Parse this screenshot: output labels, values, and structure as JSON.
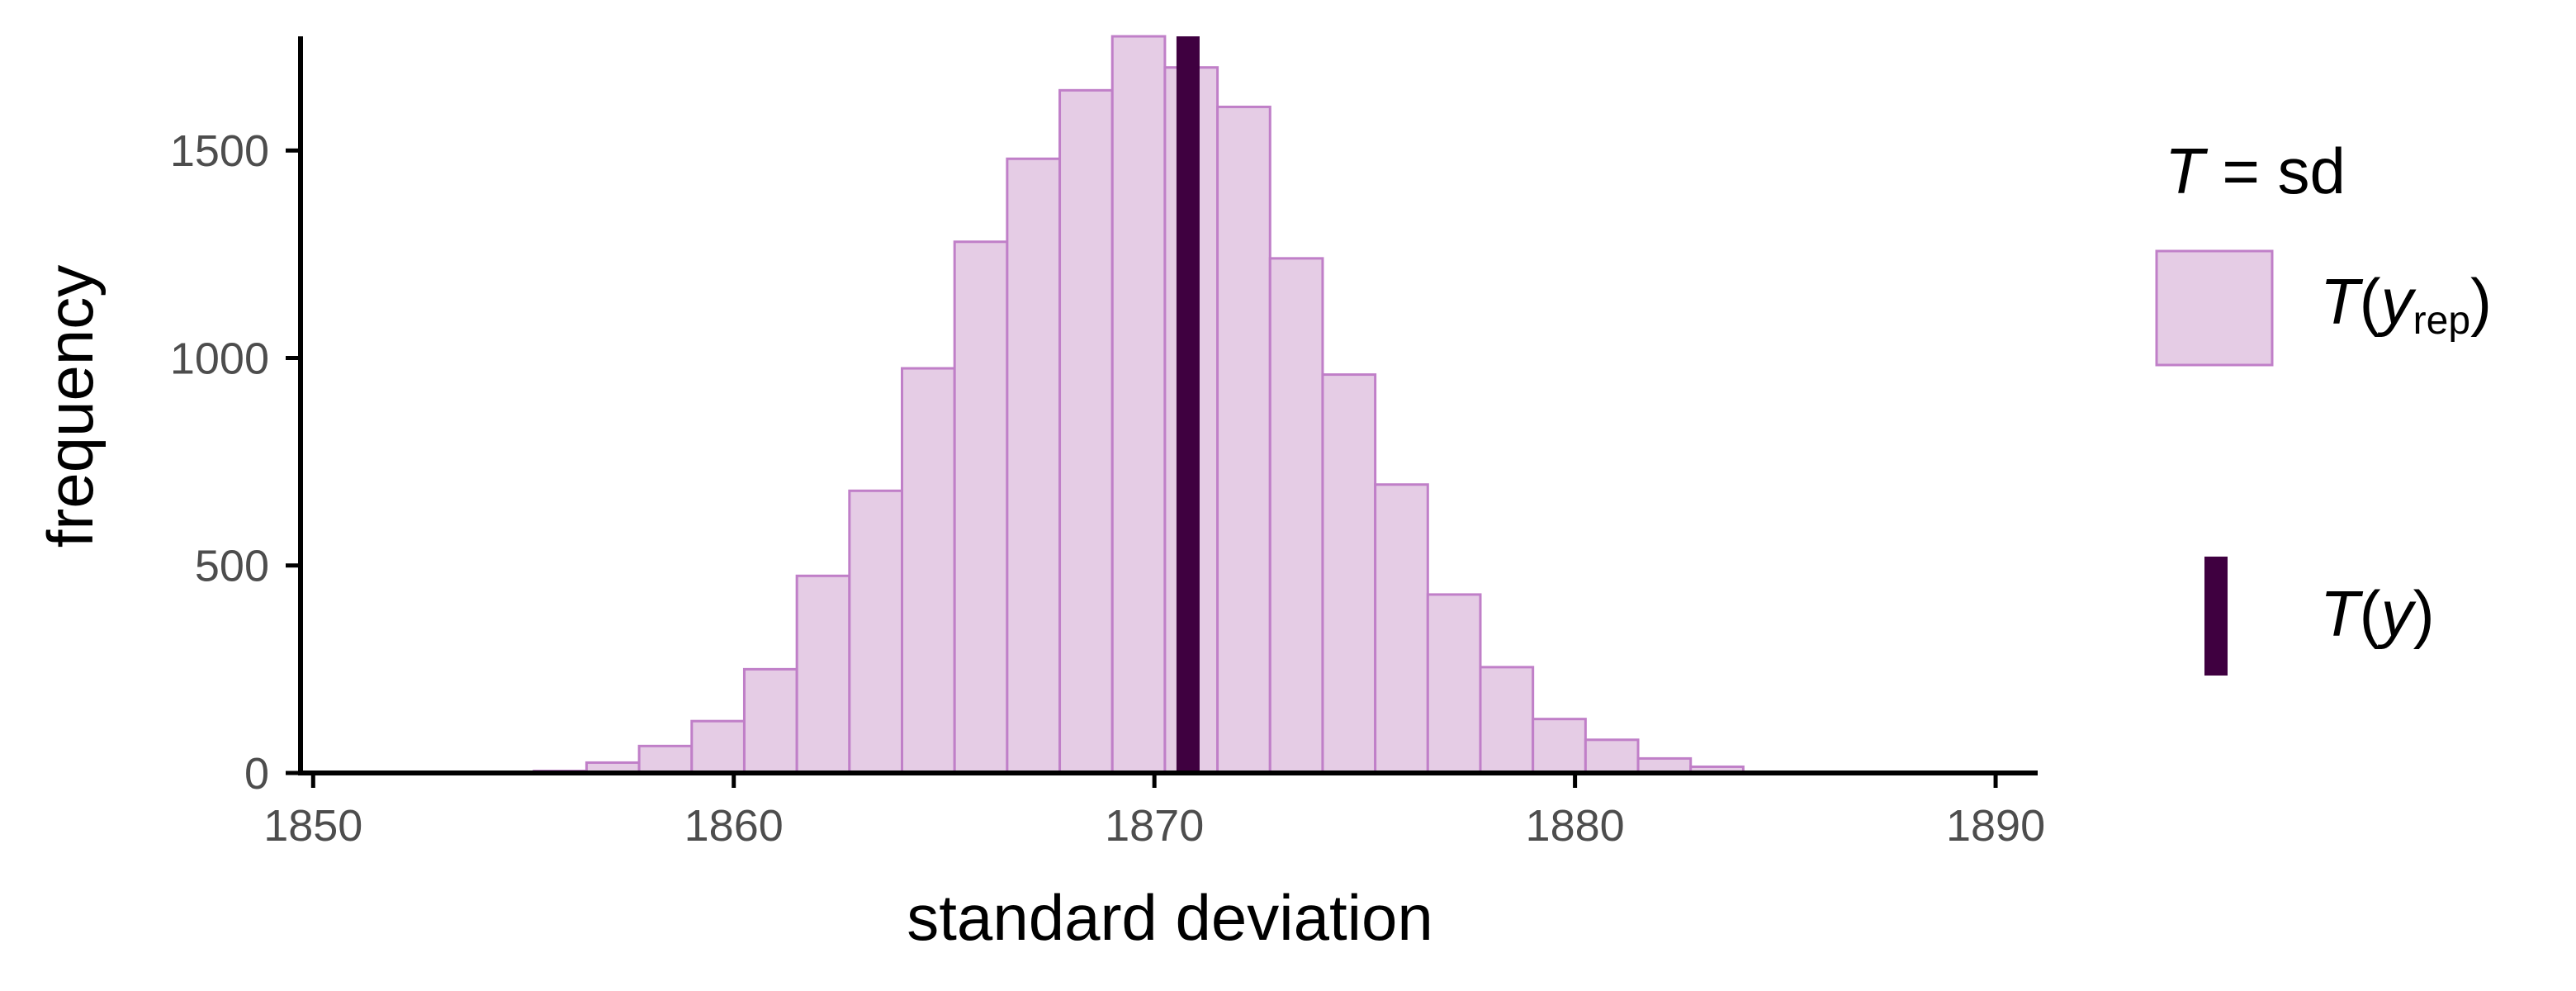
{
  "chart_data": {
    "type": "bar",
    "subtype": "histogram",
    "xlabel": "standard deviation",
    "ylabel": "frequency",
    "xlim": [
      1849.7,
      1891
    ],
    "ylim": [
      0,
      1775
    ],
    "xticks": [
      1850,
      1860,
      1870,
      1880,
      1890
    ],
    "yticks": [
      0,
      500,
      1000,
      1500
    ],
    "xtick_labels": [
      "1850",
      "1860",
      "1870",
      "1880",
      "1890"
    ],
    "ytick_labels": [
      "0",
      "500",
      "1000",
      "1500"
    ],
    "bin_width": 1.25,
    "bin_start": 1855.25,
    "frequencies": [
      5,
      25,
      65,
      125,
      250,
      475,
      680,
      975,
      1280,
      1480,
      1645,
      1775,
      1700,
      1605,
      1240,
      960,
      695,
      430,
      255,
      130,
      80,
      35,
      15
    ],
    "observed_value": 1870.8,
    "colors": {
      "bar_fill": "#e5cce5",
      "bar_stroke": "#c07fc8",
      "observed_line": "#3f0040",
      "axis": "#000000"
    },
    "grid": false,
    "legend": {
      "position": "right",
      "title_italic": "T",
      "title_rest": " = sd",
      "items": [
        {
          "symbol": "box",
          "text_T": "T",
          "text_open": "(",
          "text_var": "y",
          "text_sub": "rep",
          "text_close": ")"
        },
        {
          "symbol": "line",
          "text_T": "T",
          "text_open": "(",
          "text_var": "y",
          "text_sub": "",
          "text_close": ")"
        }
      ]
    }
  }
}
